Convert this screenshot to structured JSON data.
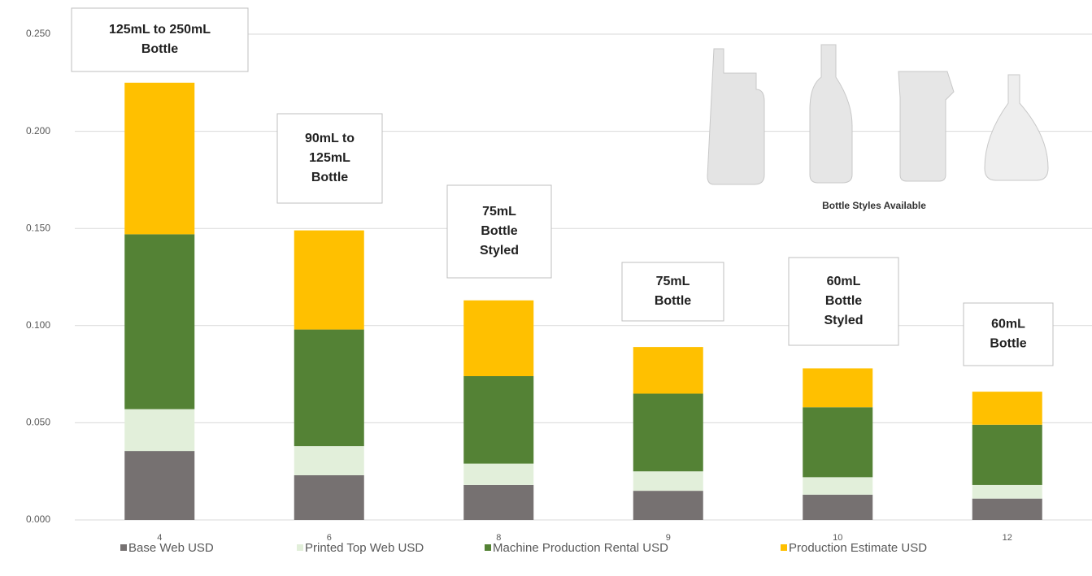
{
  "chart_data": {
    "type": "stacked_bar",
    "categories": [
      "4",
      "6",
      "8",
      "9",
      "10",
      "12"
    ],
    "series": [
      {
        "name": "Base Web USD",
        "color": "#767171",
        "values": [
          0.0355,
          0.023,
          0.018,
          0.015,
          0.013,
          0.011
        ]
      },
      {
        "name": "Printed Top Web USD",
        "color": "#e2efda",
        "values": [
          0.0215,
          0.015,
          0.011,
          0.01,
          0.009,
          0.007
        ]
      },
      {
        "name": "Machine Production Rental USD",
        "color": "#548235",
        "values": [
          0.09,
          0.06,
          0.045,
          0.04,
          0.036,
          0.031
        ]
      },
      {
        "name": "Production Estimate USD",
        "color": "#ffc000",
        "values": [
          0.078,
          0.051,
          0.039,
          0.024,
          0.02,
          0.017
        ]
      }
    ],
    "ylim": [
      0,
      0.25
    ],
    "yticks": [
      {
        "value": 0,
        "label": "0.000"
      },
      {
        "value": 0.05,
        "label": "0.050"
      },
      {
        "value": 0.1,
        "label": "0.100"
      },
      {
        "value": 0.15,
        "label": "0.150"
      },
      {
        "value": 0.2,
        "label": "0.200"
      },
      {
        "value": 0.25,
        "label": "0.250"
      }
    ],
    "grid": true,
    "legend": "bottom",
    "annotations": [
      {
        "lines": [
          "125mL to 250mL",
          "Bottle"
        ]
      },
      {
        "lines": [
          "90mL to",
          "125mL",
          "Bottle"
        ]
      },
      {
        "lines": [
          "75mL",
          "Bottle",
          "Styled"
        ]
      },
      {
        "lines": [
          "75mL",
          "Bottle"
        ]
      },
      {
        "lines": [
          "60mL",
          "Bottle",
          "Styled"
        ]
      },
      {
        "lines": [
          "60mL",
          "Bottle"
        ]
      }
    ],
    "image_caption": "Bottle Styles Available"
  }
}
